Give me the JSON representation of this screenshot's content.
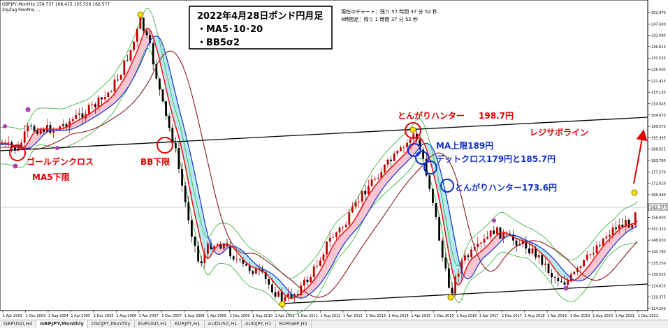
{
  "window": {
    "symbol_header": "GBPJPY,Monthly  159.757 168.415 155.556 162.577",
    "indicator_header": "ZigZag FiboProj  …"
  },
  "info_box": {
    "line1": "2022年4月28日ポンド円月足",
    "line2": "・MA5･10･20",
    "line3": "・BB5σ2"
  },
  "timer": {
    "line1": "現在のチャート：残り 57 時間 37 分 52 秒",
    "line2": "4時間足：残り 1 時間 37 分 52 秒"
  },
  "annotations": {
    "golden_cross_1": "ゴールデンクロス",
    "golden_cross_2": "MA5下限",
    "bb_lower": "BB下限",
    "togari_top": "とんがりハンター",
    "togari_top_value": "198.7円",
    "resistance": "レジサポライン",
    "ma_upper": "MA上限189円",
    "dead_cross": "デットクロス179円と185.7円",
    "togari_low": "とんがりハンター173.6円"
  },
  "price_axis": {
    "labels": [
      "252.970",
      "247.690",
      "242.090",
      "236.815",
      "231.535",
      "226.000",
      "221.425",
      "215.120",
      "210.045",
      "204.970",
      "199.570",
      "193.995",
      "188.655",
      "183.790",
      "177.570",
      "172.010",
      "166.940",
      "161.230",
      "156.000",
      "151.310",
      "146.030",
      "140.780",
      "135.250",
      "130.035",
      "124.810",
      "119.375",
      "114.250"
    ],
    "current_price": "162.577"
  },
  "time_axis": {
    "labels": [
      "1 Apr 2003",
      "1 Dec 2003",
      "1 Aug 2004",
      "1 Apr 2005",
      "1 Dec 2005",
      "1 Aug 2006",
      "1 Apr 2007",
      "1 Dec 2007",
      "1 Aug 2008",
      "1 Apr 2009",
      "1 Dec 2009",
      "1 Aug 2010",
      "1 Apr 2011",
      "1 Dec 2011",
      "1 Aug 2012",
      "1 Apr 2013",
      "1 Dec 2013",
      "1 Aug 2014",
      "1 Apr 2015",
      "1 Dec 2015",
      "1 Aug 2016",
      "1 Apr 2017",
      "1 Dec 2017",
      "1 Aug 2018",
      "1 Apr 2019",
      "1 Dec 2019",
      "1 Aug 2020",
      "1 Apr 2021",
      "1 Dec 2021"
    ]
  },
  "tabs": [
    "GBPUSD,H4",
    "GBPJPY,Monthly",
    "USDJPY,Monthly",
    "EURUSD,H1",
    "EURJPY,H1",
    "AUDUSD,H1",
    "AUDJPY,H1",
    "EURGBP,H1"
  ],
  "active_tab": 1,
  "colors": {
    "bull": "#c00000",
    "bear": "#000000",
    "bollinger": "#33aa33",
    "ma_blue": "#1c3fd6",
    "ma_dark": "#8b1a1a",
    "annotation_red": "#e00000",
    "annotation_blue": "#1030c8"
  }
}
